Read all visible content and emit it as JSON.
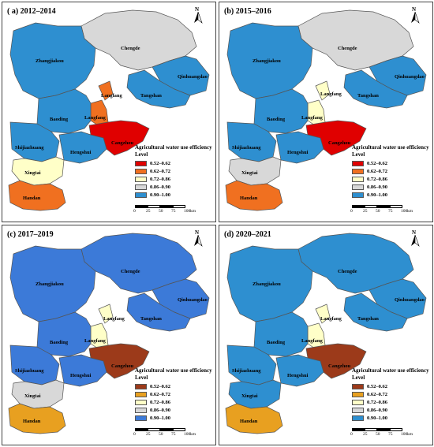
{
  "legend": {
    "title": "Agricultural water use efficiency",
    "level_label": "Level",
    "levels": [
      "0.52–0.62",
      "0.62–0.72",
      "0.72–0.86",
      "0.86–0.90",
      "0.90–1.00"
    ],
    "colors": [
      "#e00000",
      "#f07020",
      "#ffffc8",
      "#d8d8d8",
      "#2e8fd0"
    ]
  },
  "scale": {
    "ticks": [
      "0",
      "25",
      "50",
      "75",
      "100"
    ],
    "unit": "km"
  },
  "north_label": "N",
  "cities": [
    "Chengde",
    "Zhangjiakou",
    "Qinhuangdao",
    "Tangshan",
    "Langfang",
    "Baoding",
    "Cangzhou",
    "Shijiazhuang",
    "Hengshui",
    "Xingtai",
    "Handan"
  ],
  "panels": [
    {
      "title": "( a) 2012–2014",
      "levels": {
        "Chengde": 3,
        "Zhangjiakou": 4,
        "Qinhuangdao": 4,
        "Tangshan": 4,
        "Langfang-north": 1,
        "Langfang": 1,
        "Baoding": 4,
        "Cangzhou": 0,
        "Shijiazhuang": 4,
        "Hengshui": 4,
        "Xingtai": 2,
        "Handan": 1
      }
    },
    {
      "title": "(b) 2015–2016",
      "levels": {
        "Chengde": 3,
        "Zhangjiakou": 4,
        "Qinhuangdao": 4,
        "Tangshan": 4,
        "Langfang-north": 2,
        "Langfang": 2,
        "Baoding": 4,
        "Cangzhou": 0,
        "Shijiazhuang": 4,
        "Hengshui": 4,
        "Xingtai": 3,
        "Handan": 1
      }
    },
    {
      "title": "(c) 2017–2019",
      "levels": {
        "Chengde": 4,
        "Zhangjiakou": 4,
        "Qinhuangdao": 4,
        "Tangshan": 4,
        "Langfang-north": 2,
        "Langfang": 2,
        "Baoding": 4,
        "Cangzhou": 0,
        "Shijiazhuang": 4,
        "Hengshui": 4,
        "Xingtai": 3,
        "Handan": 1
      }
    },
    {
      "title": "(d) 2020–2021",
      "levels": {
        "Chengde": 4,
        "Zhangjiakou": 4,
        "Qinhuangdao": 4,
        "Tangshan": 4,
        "Langfang-north": 2,
        "Langfang": 2,
        "Baoding": 4,
        "Cangzhou": 0,
        "Shijiazhuang": 4,
        "Hengshui": 4,
        "Xingtai": 4,
        "Handan": 1
      }
    }
  ],
  "panel_legend_palettes": [
    [
      "#e00000",
      "#f07020",
      "#ffffc8",
      "#d8d8d8",
      "#2e8fd0"
    ],
    [
      "#e00000",
      "#f07020",
      "#ffffc8",
      "#d8d8d8",
      "#2e8fd0"
    ],
    [
      "#9c3a1a",
      "#e8a020",
      "#ffffc8",
      "#d8d8d8",
      "#3c7ad8"
    ],
    [
      "#9c3a1a",
      "#e8a020",
      "#ffffc8",
      "#d8d8d8",
      "#2e8fd0"
    ]
  ]
}
